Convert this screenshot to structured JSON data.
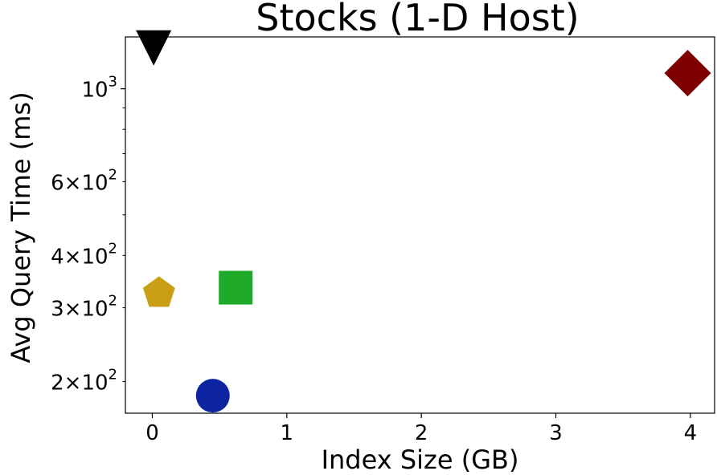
{
  "chart_data": {
    "type": "scatter",
    "title": "Stocks (1-D Host)",
    "xlabel": "Index Size (GB)",
    "ylabel": "Avg Query Time (ms)",
    "xlim": [
      -0.2,
      4.18
    ],
    "ylim": [
      168,
      1330
    ],
    "y_scale": "log",
    "x_ticks": [
      {
        "value": 0,
        "label": "0"
      },
      {
        "value": 1,
        "label": "1"
      },
      {
        "value": 2,
        "label": "2"
      },
      {
        "value": 3,
        "label": "3"
      },
      {
        "value": 4,
        "label": "4"
      }
    ],
    "y_major_ticks": [
      {
        "value": 1000,
        "base": "10",
        "exp": "3"
      }
    ],
    "y_minor_ticks": [
      {
        "value": 200,
        "mant": "2",
        "base": "10",
        "exp": "2"
      },
      {
        "value": 300,
        "mant": "3",
        "base": "10",
        "exp": "2"
      },
      {
        "value": 400,
        "mant": "4",
        "base": "10",
        "exp": "2"
      },
      {
        "value": 500,
        "mant": "",
        "base": "",
        "exp": ""
      },
      {
        "value": 600,
        "mant": "6",
        "base": "10",
        "exp": "2"
      },
      {
        "value": 700,
        "mant": "",
        "base": "",
        "exp": ""
      },
      {
        "value": 800,
        "mant": "",
        "base": "",
        "exp": ""
      },
      {
        "value": 900,
        "mant": "",
        "base": "",
        "exp": ""
      }
    ],
    "grid": false,
    "points": [
      {
        "x": 0.01,
        "y": 1230,
        "marker": "triangle-down",
        "color": "#000000"
      },
      {
        "x": 3.98,
        "y": 1090,
        "marker": "diamond",
        "color": "#7f0000"
      },
      {
        "x": 0.62,
        "y": 335,
        "marker": "square",
        "color": "#1faa2a"
      },
      {
        "x": 0.05,
        "y": 325,
        "marker": "pentagon",
        "color": "#c9a015"
      },
      {
        "x": 0.45,
        "y": 185,
        "marker": "circle",
        "color": "#0d24a0"
      }
    ]
  }
}
